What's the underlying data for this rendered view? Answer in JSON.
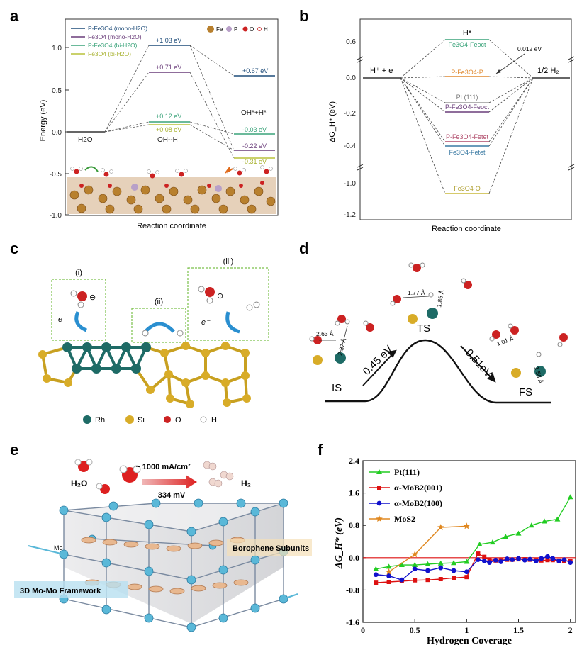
{
  "panels": {
    "a": {
      "label": "a",
      "ylabel": "Energy (eV)",
      "xlabel": "Reaction coordinate",
      "yticks": [
        "1.0",
        "0.5",
        "0.0",
        "-0.5",
        "-1.0"
      ],
      "legend": [
        "P-Fe3O4 (mono-H2O)",
        "Fe3O4 (mono-H2O)",
        "P-Fe3O4 (bi-H2O)",
        "Fe3O4 (bi-H2O)"
      ],
      "element_legend": [
        "Fe",
        "P",
        "O",
        "H"
      ],
      "state_labels": [
        "H2O",
        "OH--H",
        "OH*+H*"
      ],
      "level_labels": [
        "+1.03 eV",
        "+0.71 eV",
        "+0.12 eV",
        "+0.08 eV",
        "+0.67 eV",
        "-0.03 eV",
        "-0.22 eV",
        "-0.31 eV"
      ]
    },
    "b": {
      "label": "b",
      "ylabel": "ΔG_H* (eV)",
      "xlabel": "Reaction coordinate",
      "yticks": [
        "0.6",
        "0.0",
        "-0.2",
        "-0.4",
        "-1.0",
        "-1.2"
      ],
      "left_state": "H⁺ + e⁻",
      "right_state": "1/2 H₂",
      "top_label": "H*",
      "annotation": "0.012 eV",
      "levels": [
        "Fe3O4-Feoct",
        "P-Fe3O4-P",
        "Pt (111)",
        "P-Fe3O4-Feoct",
        "P-Fe3O4-Fetet",
        "Fe3O4-Fetet",
        "Fe3O4-O"
      ]
    },
    "c": {
      "label": "c",
      "steps": [
        "(i)",
        "(ii)",
        "(iii)"
      ],
      "electron": "e⁻",
      "legend": [
        "Rh",
        "Si",
        "O",
        "H"
      ]
    },
    "d": {
      "label": "d",
      "states": [
        "IS",
        "TS",
        "FS"
      ],
      "barriers": [
        "0.45 eV",
        "0.51eV"
      ],
      "distances": [
        "2.63 Å",
        "2.37 Å",
        "1.77 Å",
        "1.85 Å",
        "1.01 Å",
        "1.56 Å"
      ]
    },
    "e": {
      "label": "e",
      "h2o": "H₂O",
      "h2": "H₂",
      "current": "~ 1000 mA/cm²",
      "voltage": "334 mV",
      "mo": "Mo",
      "borophene": "Borophene Subunits",
      "framework": "3D Mo-Mo Framework"
    },
    "f": {
      "label": "f",
      "ylabel": "ΔG_H* (eV)",
      "xlabel": "Hydrogen Coverage",
      "yticks": [
        "2.4",
        "1.6",
        "0.8",
        "0.0",
        "-0.8",
        "-1.6"
      ],
      "xticks": [
        "0",
        "0.5",
        "1",
        "1.5",
        "2"
      ]
    }
  },
  "chart_data": {
    "type": "line",
    "title": "",
    "xlabel": "Hydrogen Coverage",
    "ylabel": "ΔG_H* (eV)",
    "xlim": [
      0,
      2.05
    ],
    "ylim": [
      -1.6,
      2.4
    ],
    "series": [
      {
        "name": "Pt(111)",
        "color": "#22cc22",
        "marker": "triangle",
        "x": [
          0.125,
          0.25,
          0.375,
          0.5,
          0.625,
          0.75,
          0.875,
          1.0,
          1.125,
          1.25,
          1.375,
          1.5,
          1.625,
          1.75,
          1.875,
          2.0
        ],
        "y": [
          -0.28,
          -0.22,
          -0.18,
          -0.18,
          -0.16,
          -0.14,
          -0.13,
          -0.1,
          0.33,
          0.38,
          0.52,
          0.6,
          0.8,
          0.9,
          0.95,
          1.5
        ]
      },
      {
        "name": "α-MoB2(001)",
        "color": "#dd1111",
        "marker": "square",
        "x": [
          0.125,
          0.25,
          0.375,
          0.5,
          0.625,
          0.75,
          0.875,
          1.0,
          1.11,
          1.17,
          1.22,
          1.28,
          1.33,
          1.39,
          1.44,
          1.5,
          1.56,
          1.61,
          1.67,
          1.72,
          1.78,
          1.83,
          1.89,
          1.94,
          2.0
        ],
        "y": [
          -0.62,
          -0.6,
          -0.58,
          -0.56,
          -0.55,
          -0.53,
          -0.5,
          -0.48,
          0.1,
          0.02,
          -0.05,
          -0.07,
          -0.06,
          -0.05,
          -0.05,
          -0.04,
          -0.04,
          -0.05,
          -0.06,
          -0.07,
          -0.06,
          -0.06,
          -0.07,
          -0.08,
          -0.08
        ]
      },
      {
        "name": "α-MoB2(100)",
        "color": "#1111cc",
        "marker": "circle",
        "x": [
          0.125,
          0.25,
          0.375,
          0.5,
          0.625,
          0.75,
          0.875,
          1.0,
          1.11,
          1.17,
          1.22,
          1.28,
          1.33,
          1.39,
          1.44,
          1.5,
          1.56,
          1.61,
          1.67,
          1.72,
          1.78,
          1.83,
          1.89,
          1.94,
          2.0
        ],
        "y": [
          -0.42,
          -0.45,
          -0.55,
          -0.28,
          -0.32,
          -0.25,
          -0.32,
          -0.35,
          -0.05,
          -0.08,
          -0.12,
          -0.06,
          -0.1,
          -0.03,
          -0.05,
          -0.02,
          -0.06,
          -0.04,
          -0.08,
          -0.02,
          0.03,
          -0.02,
          -0.08,
          -0.05,
          -0.12
        ]
      },
      {
        "name": "MoS2",
        "color": "#e08820",
        "marker": "star",
        "x": [
          0.25,
          0.5,
          0.75,
          1.0
        ],
        "y": [
          -0.35,
          0.08,
          0.75,
          0.78
        ]
      }
    ]
  }
}
